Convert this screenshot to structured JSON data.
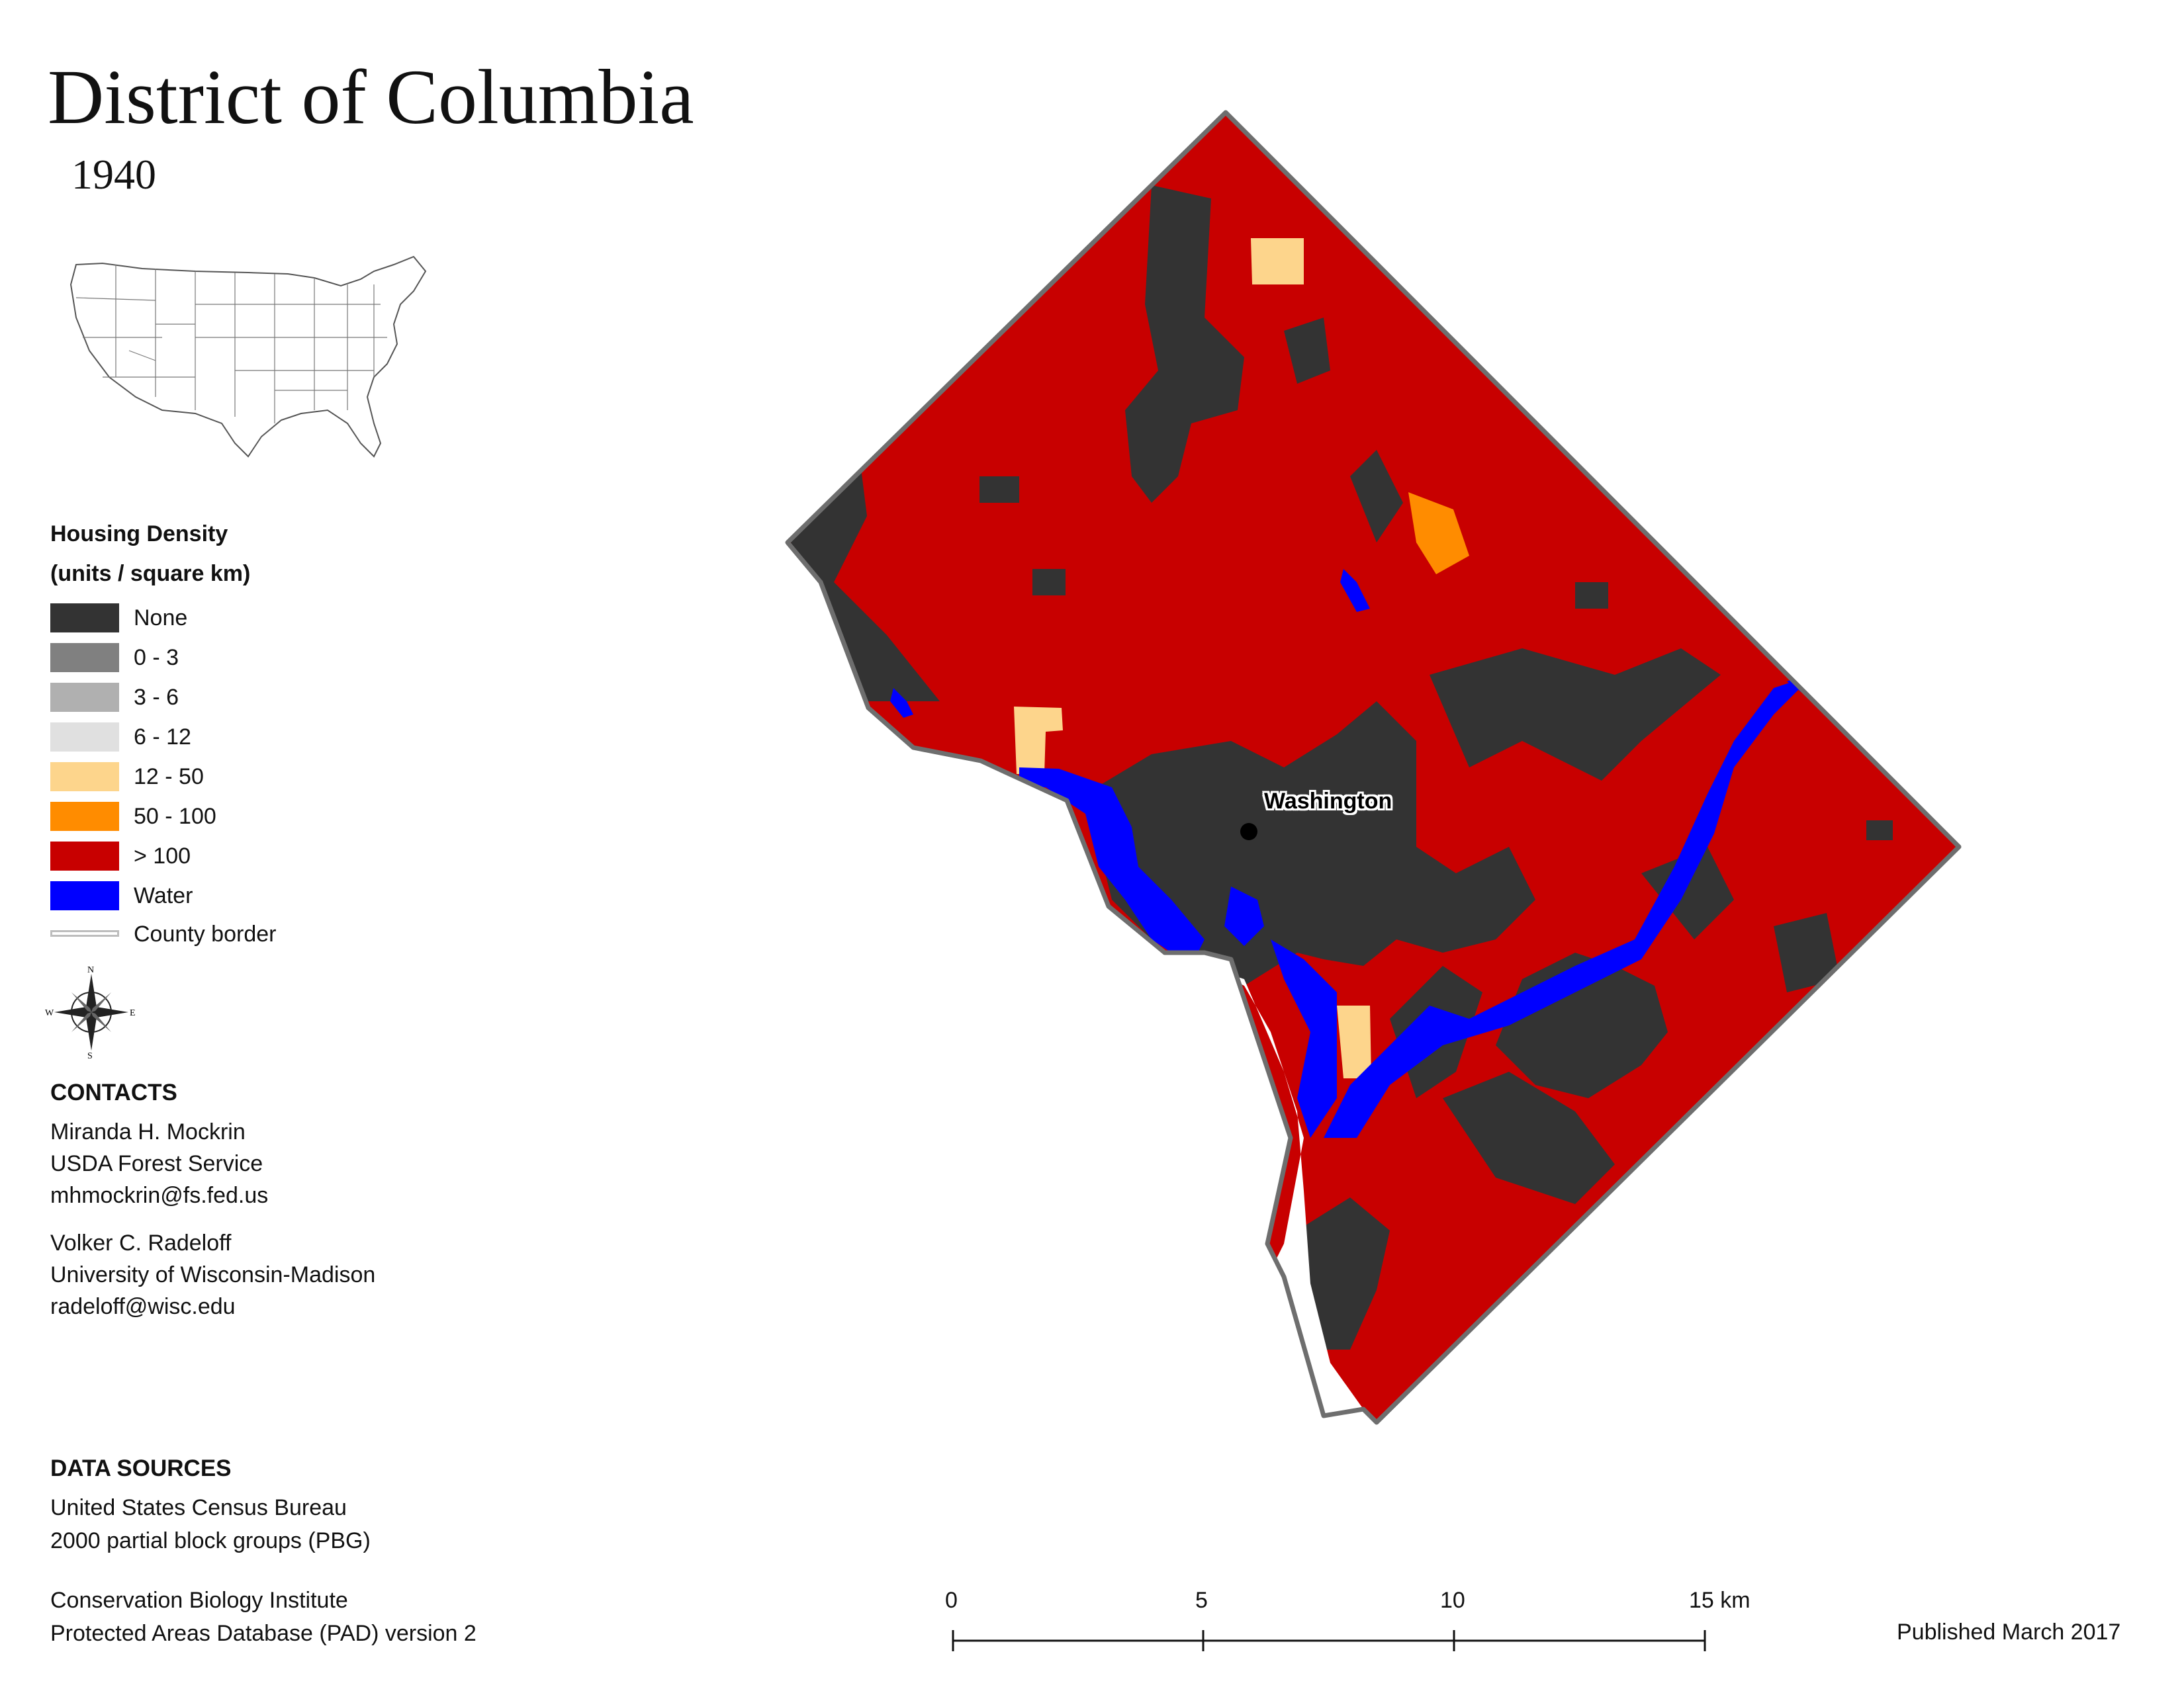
{
  "title": "District of Columbia",
  "year": "1940",
  "legend": {
    "title": "Housing Density",
    "subtitle": "(units / square km)",
    "items": [
      {
        "label": "None",
        "color": "#333333",
        "kind": "fill"
      },
      {
        "label": "0 - 3",
        "color": "#808080",
        "kind": "fill"
      },
      {
        "label": "3 - 6",
        "color": "#b0b0b0",
        "kind": "fill"
      },
      {
        "label": "6 - 12",
        "color": "#e0e0e0",
        "kind": "fill"
      },
      {
        "label": "12 - 50",
        "color": "#fdd58c",
        "kind": "fill"
      },
      {
        "label": "50 - 100",
        "color": "#ff8c00",
        "kind": "fill"
      },
      {
        "label": "> 100",
        "color": "#c80000",
        "kind": "fill"
      },
      {
        "label": "Water",
        "color": "#0000ff",
        "kind": "fill"
      },
      {
        "label": "County border",
        "color": "#bdbdbd",
        "kind": "line"
      }
    ]
  },
  "compass": {
    "n": "N",
    "s": "S",
    "e": "E",
    "w": "W"
  },
  "contacts": {
    "heading": "CONTACTS",
    "people": [
      {
        "name": "Miranda H. Mockrin",
        "org": "USDA Forest Service",
        "email": "mhmockrin@fs.fed.us"
      },
      {
        "name": "Volker C. Radeloff",
        "org": "University of Wisconsin-Madison",
        "email": "radeloff@wisc.edu"
      }
    ]
  },
  "data_sources": {
    "heading": "DATA SOURCES",
    "lines": [
      "United States Census Bureau",
      "2000 partial block groups (PBG)",
      "Conservation Biology Institute",
      "Protected Areas Database (PAD) version 2"
    ]
  },
  "map": {
    "city_label": "Washington",
    "colors": {
      "none": "#333333",
      "high": "#c80000",
      "water": "#0000ff",
      "mid": "#fdd58c",
      "orange": "#ff8c00",
      "border": "#6e6e6e"
    }
  },
  "scale": {
    "ticks": [
      "0",
      "5",
      "10",
      "15 km"
    ]
  },
  "published": "Published March 2017"
}
